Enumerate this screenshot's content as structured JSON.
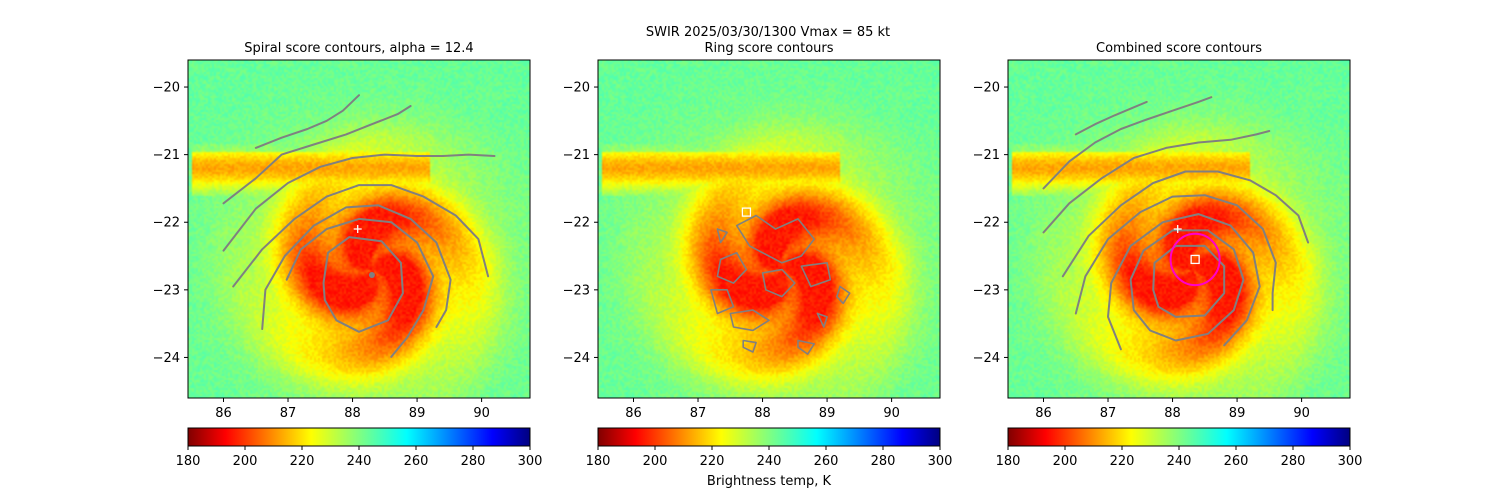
{
  "figure": {
    "suptitle_line1": "SWIR  2025/03/30/1300    Vmax = 85 kt",
    "colorbar_label": "Brightness temp, K"
  },
  "chart_data": [
    {
      "type": "heatmap",
      "title": "Spiral score contours, alpha = 12.4",
      "xlim": [
        85.45,
        90.75
      ],
      "ylim": [
        -24.6,
        -19.6
      ],
      "xticks": [
        "86",
        "87",
        "88",
        "89",
        "90"
      ],
      "yticks": [
        "−20",
        "−21",
        "−22",
        "−23",
        "−24"
      ],
      "xtick_values": [
        86,
        87,
        88,
        89,
        90
      ],
      "ytick_values": [
        -20,
        -21,
        -22,
        -23,
        -24
      ],
      "markers": [
        {
          "kind": "plus",
          "lon": 88.08,
          "lat": -22.1,
          "color": "#ffffff"
        },
        {
          "kind": "dot",
          "lon": 88.3,
          "lat": -22.78,
          "color": "#808080"
        }
      ],
      "contours": [
        [
          [
            86.5,
            -20.9
          ],
          [
            86.9,
            -20.75
          ],
          [
            87.3,
            -20.62
          ],
          [
            87.6,
            -20.5
          ],
          [
            87.85,
            -20.35
          ],
          [
            88.1,
            -20.12
          ]
        ],
        [
          [
            86.0,
            -21.72
          ],
          [
            86.5,
            -21.35
          ],
          [
            86.9,
            -21.0
          ],
          [
            87.4,
            -20.85
          ],
          [
            87.9,
            -20.7
          ],
          [
            88.3,
            -20.55
          ],
          [
            88.7,
            -20.4
          ],
          [
            88.9,
            -20.28
          ]
        ],
        [
          [
            86.0,
            -22.42
          ],
          [
            86.5,
            -21.8
          ],
          [
            87.0,
            -21.42
          ],
          [
            87.5,
            -21.18
          ],
          [
            88.0,
            -21.05
          ],
          [
            88.5,
            -21.0
          ],
          [
            89.0,
            -21.02
          ],
          [
            89.4,
            -21.02
          ],
          [
            89.8,
            -21.0
          ],
          [
            90.2,
            -21.02
          ]
        ],
        [
          [
            86.15,
            -22.95
          ],
          [
            86.6,
            -22.4
          ],
          [
            87.1,
            -21.95
          ],
          [
            87.6,
            -21.62
          ],
          [
            88.1,
            -21.45
          ],
          [
            88.6,
            -21.45
          ],
          [
            89.1,
            -21.62
          ],
          [
            89.6,
            -21.9
          ],
          [
            89.95,
            -22.25
          ],
          [
            90.1,
            -22.8
          ]
        ],
        [
          [
            86.6,
            -23.58
          ],
          [
            86.65,
            -23.0
          ],
          [
            86.95,
            -22.5
          ],
          [
            87.4,
            -22.05
          ],
          [
            87.9,
            -21.78
          ],
          [
            88.4,
            -21.75
          ],
          [
            88.9,
            -21.95
          ],
          [
            89.3,
            -22.3
          ],
          [
            89.52,
            -22.85
          ],
          [
            89.45,
            -23.3
          ],
          [
            89.3,
            -23.55
          ]
        ],
        [
          [
            86.98,
            -22.85
          ],
          [
            87.2,
            -22.4
          ],
          [
            87.6,
            -22.1
          ],
          [
            88.1,
            -21.95
          ],
          [
            88.6,
            -22.0
          ],
          [
            89.0,
            -22.3
          ],
          [
            89.25,
            -22.8
          ],
          [
            89.1,
            -23.3
          ],
          [
            88.85,
            -23.7
          ],
          [
            88.6,
            -23.99
          ]
        ],
        [
          [
            87.55,
            -22.9
          ],
          [
            87.62,
            -22.45
          ],
          [
            87.95,
            -22.22
          ],
          [
            88.45,
            -22.28
          ],
          [
            88.75,
            -22.6
          ],
          [
            88.78,
            -23.05
          ],
          [
            88.55,
            -23.45
          ],
          [
            88.1,
            -23.62
          ],
          [
            87.75,
            -23.45
          ],
          [
            87.57,
            -23.15
          ],
          [
            87.55,
            -22.9
          ]
        ]
      ]
    },
    {
      "type": "heatmap",
      "title": "Ring score contours",
      "xlim": [
        85.45,
        90.75
      ],
      "ylim": [
        -24.6,
        -19.6
      ],
      "xticks": [
        "86",
        "87",
        "88",
        "89",
        "90"
      ],
      "yticks": [
        "−20",
        "−21",
        "−22",
        "−23",
        "−24"
      ],
      "xtick_values": [
        86,
        87,
        88,
        89,
        90
      ],
      "ytick_values": [
        -20,
        -21,
        -22,
        -23,
        -24
      ],
      "markers": [
        {
          "kind": "square",
          "lon": 87.75,
          "lat": -21.85,
          "color": "#ffffff"
        }
      ],
      "contours": [
        [
          [
            87.6,
            -22.05
          ],
          [
            87.9,
            -21.9
          ],
          [
            88.2,
            -22.1
          ],
          [
            88.55,
            -21.95
          ],
          [
            88.8,
            -22.25
          ],
          [
            88.6,
            -22.5
          ],
          [
            88.3,
            -22.6
          ],
          [
            88.0,
            -22.45
          ],
          [
            87.8,
            -22.35
          ],
          [
            87.6,
            -22.05
          ]
        ],
        [
          [
            87.35,
            -22.55
          ],
          [
            87.6,
            -22.45
          ],
          [
            87.75,
            -22.7
          ],
          [
            87.55,
            -22.9
          ],
          [
            87.3,
            -22.8
          ],
          [
            87.35,
            -22.55
          ]
        ],
        [
          [
            88.0,
            -22.75
          ],
          [
            88.3,
            -22.7
          ],
          [
            88.5,
            -22.9
          ],
          [
            88.3,
            -23.1
          ],
          [
            88.05,
            -23.0
          ],
          [
            88.0,
            -22.75
          ]
        ],
        [
          [
            88.6,
            -22.65
          ],
          [
            89.0,
            -22.6
          ],
          [
            89.05,
            -22.85
          ],
          [
            88.75,
            -22.95
          ],
          [
            88.6,
            -22.65
          ]
        ],
        [
          [
            87.2,
            -23.0
          ],
          [
            87.45,
            -23.0
          ],
          [
            87.55,
            -23.25
          ],
          [
            87.3,
            -23.35
          ],
          [
            87.2,
            -23.0
          ]
        ],
        [
          [
            87.5,
            -23.35
          ],
          [
            87.85,
            -23.3
          ],
          [
            88.1,
            -23.45
          ],
          [
            87.85,
            -23.6
          ],
          [
            87.55,
            -23.55
          ],
          [
            87.5,
            -23.35
          ]
        ],
        [
          [
            87.7,
            -23.75
          ],
          [
            87.9,
            -23.78
          ],
          [
            87.85,
            -23.92
          ],
          [
            87.7,
            -23.85
          ],
          [
            87.7,
            -23.75
          ]
        ],
        [
          [
            88.55,
            -23.75
          ],
          [
            88.8,
            -23.8
          ],
          [
            88.7,
            -23.95
          ],
          [
            88.55,
            -23.85
          ],
          [
            88.55,
            -23.75
          ]
        ],
        [
          [
            89.2,
            -22.95
          ],
          [
            89.35,
            -23.05
          ],
          [
            89.25,
            -23.2
          ],
          [
            89.15,
            -23.1
          ],
          [
            89.2,
            -22.95
          ]
        ],
        [
          [
            87.3,
            -22.1
          ],
          [
            87.45,
            -22.15
          ],
          [
            87.35,
            -22.3
          ],
          [
            87.3,
            -22.1
          ]
        ],
        [
          [
            88.85,
            -23.35
          ],
          [
            89.0,
            -23.4
          ],
          [
            88.95,
            -23.55
          ],
          [
            88.85,
            -23.35
          ]
        ]
      ]
    },
    {
      "type": "heatmap",
      "title": "Combined score contours",
      "xlim": [
        85.45,
        90.75
      ],
      "ylim": [
        -24.6,
        -19.6
      ],
      "xticks": [
        "86",
        "87",
        "88",
        "89",
        "90"
      ],
      "yticks": [
        "−20",
        "−21",
        "−22",
        "−23",
        "−24"
      ],
      "xtick_values": [
        86,
        87,
        88,
        89,
        90
      ],
      "ytick_values": [
        -20,
        -21,
        -22,
        -23,
        -24
      ],
      "markers": [
        {
          "kind": "plus",
          "lon": 88.08,
          "lat": -22.1,
          "color": "#ffffff"
        },
        {
          "kind": "square",
          "lon": 88.35,
          "lat": -22.55,
          "color": "#ffffff"
        },
        {
          "kind": "circle",
          "lon": 88.35,
          "lat": -22.55,
          "radius_deg": 0.38,
          "color": "#ff00cc"
        }
      ],
      "contours": [
        [
          [
            86.5,
            -20.7
          ],
          [
            86.8,
            -20.55
          ],
          [
            87.1,
            -20.42
          ],
          [
            87.4,
            -20.3
          ],
          [
            87.6,
            -20.22
          ]
        ],
        [
          [
            86.0,
            -21.5
          ],
          [
            86.4,
            -21.1
          ],
          [
            86.8,
            -20.82
          ],
          [
            87.2,
            -20.62
          ],
          [
            87.6,
            -20.48
          ],
          [
            88.0,
            -20.35
          ],
          [
            88.4,
            -20.22
          ],
          [
            88.6,
            -20.15
          ]
        ],
        [
          [
            86.0,
            -22.15
          ],
          [
            86.4,
            -21.72
          ],
          [
            86.9,
            -21.35
          ],
          [
            87.4,
            -21.05
          ],
          [
            87.9,
            -20.9
          ],
          [
            88.4,
            -20.82
          ],
          [
            88.9,
            -20.78
          ],
          [
            89.3,
            -20.7
          ],
          [
            89.5,
            -20.65
          ]
        ],
        [
          [
            86.3,
            -22.8
          ],
          [
            86.7,
            -22.2
          ],
          [
            87.2,
            -21.75
          ],
          [
            87.7,
            -21.42
          ],
          [
            88.2,
            -21.25
          ],
          [
            88.7,
            -21.25
          ],
          [
            89.2,
            -21.38
          ],
          [
            89.6,
            -21.6
          ],
          [
            89.95,
            -21.9
          ],
          [
            90.1,
            -22.3
          ]
        ],
        [
          [
            86.5,
            -23.35
          ],
          [
            86.65,
            -22.8
          ],
          [
            87.0,
            -22.25
          ],
          [
            87.5,
            -21.85
          ],
          [
            88.0,
            -21.62
          ],
          [
            88.5,
            -21.6
          ],
          [
            89.0,
            -21.75
          ],
          [
            89.4,
            -22.1
          ],
          [
            89.6,
            -22.6
          ],
          [
            89.55,
            -23.05
          ],
          [
            89.55,
            -23.3
          ]
        ],
        [
          [
            87.2,
            -23.88
          ],
          [
            87.0,
            -23.4
          ],
          [
            87.05,
            -22.9
          ],
          [
            87.35,
            -22.35
          ],
          [
            87.85,
            -22.0
          ],
          [
            88.4,
            -21.88
          ],
          [
            88.9,
            -22.05
          ],
          [
            89.25,
            -22.45
          ],
          [
            89.35,
            -22.95
          ],
          [
            89.15,
            -23.45
          ],
          [
            88.8,
            -23.82
          ]
        ],
        [
          [
            87.4,
            -23.3
          ],
          [
            87.35,
            -22.85
          ],
          [
            87.55,
            -22.42
          ],
          [
            88.0,
            -22.12
          ],
          [
            88.55,
            -22.12
          ],
          [
            88.95,
            -22.4
          ],
          [
            89.1,
            -22.85
          ],
          [
            88.95,
            -23.3
          ],
          [
            88.55,
            -23.65
          ],
          [
            88.05,
            -23.75
          ],
          [
            87.65,
            -23.6
          ],
          [
            87.4,
            -23.3
          ]
        ],
        [
          [
            87.7,
            -23.0
          ],
          [
            87.72,
            -22.6
          ],
          [
            88.05,
            -22.35
          ],
          [
            88.5,
            -22.35
          ],
          [
            88.8,
            -22.65
          ],
          [
            88.8,
            -23.05
          ],
          [
            88.5,
            -23.38
          ],
          [
            88.05,
            -23.4
          ],
          [
            87.78,
            -23.25
          ],
          [
            87.7,
            -23.0
          ]
        ]
      ]
    }
  ],
  "colorbar": {
    "cmap": "jet_r",
    "min": 180,
    "max": 300,
    "ticks": [
      "180",
      "200",
      "220",
      "240",
      "260",
      "280",
      "300"
    ],
    "tick_values": [
      180,
      200,
      220,
      240,
      260,
      280,
      300
    ]
  },
  "storm": {
    "center_lon": 88.3,
    "center_lat": -22.7,
    "background_temp": 243,
    "core_temp": 198,
    "contour_color": "#808080"
  }
}
